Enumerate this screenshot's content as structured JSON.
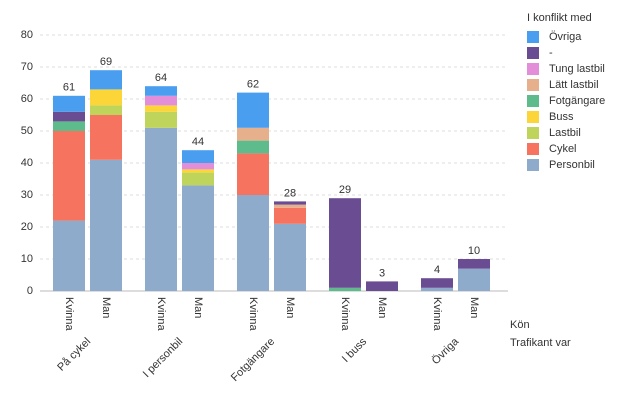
{
  "chart_data": {
    "type": "stacked-bar",
    "groups": [
      {
        "name": "På cykel",
        "categories": [
          "Kvinna",
          "Man"
        ]
      },
      {
        "name": "I personbil",
        "categories": [
          "Kvinna",
          "Man"
        ]
      },
      {
        "name": "Fotgängare",
        "categories": [
          "Kvinna",
          "Man"
        ]
      },
      {
        "name": "I buss",
        "categories": [
          "Kvinna",
          "Man"
        ]
      },
      {
        "name": "Övriga",
        "categories": [
          "Kvinna",
          "Man"
        ]
      }
    ],
    "x_label": "Kön",
    "group_label": "Trafikant var",
    "legend_title": "I konflikt med",
    "series": [
      {
        "name": "Personbil",
        "color": "#8fabcc",
        "values": [
          22,
          41,
          51,
          33,
          30,
          21,
          0,
          0,
          1,
          7
        ]
      },
      {
        "name": "Cykel",
        "color": "#f5735f",
        "values": [
          28,
          14,
          0,
          0,
          13,
          5,
          0,
          0,
          0,
          0
        ]
      },
      {
        "name": "Lastbil",
        "color": "#bfd45a",
        "values": [
          0,
          3,
          5,
          4,
          0,
          0,
          0,
          0,
          0,
          0
        ]
      },
      {
        "name": "Buss",
        "color": "#fcd638",
        "values": [
          0,
          5,
          2,
          1,
          0,
          0,
          0,
          0,
          0,
          0
        ]
      },
      {
        "name": "Fotgängare",
        "color": "#5dbb8c",
        "values": [
          3,
          0,
          0,
          0,
          4,
          0,
          1,
          0,
          0,
          0
        ]
      },
      {
        "name": "Lätt lastbil",
        "color": "#e6b08c",
        "values": [
          0,
          0,
          0,
          0,
          4,
          1,
          0,
          0,
          0,
          0
        ]
      },
      {
        "name": "Tung lastbil",
        "color": "#e38ed8",
        "values": [
          0,
          0,
          3,
          2,
          0,
          0,
          0,
          0,
          0,
          0
        ]
      },
      {
        "name": "-",
        "color": "#6a4c93",
        "values": [
          3,
          0,
          0,
          0,
          0,
          1,
          28,
          3,
          3,
          3
        ]
      },
      {
        "name": "Övriga",
        "color": "#4a9ef0",
        "values": [
          5,
          6,
          3,
          4,
          11,
          0,
          0,
          0,
          0,
          0
        ]
      }
    ],
    "totals": [
      61,
      69,
      64,
      44,
      62,
      28,
      29,
      3,
      4,
      10
    ],
    "ylim": [
      0,
      80
    ],
    "yticks": [
      0,
      10,
      20,
      30,
      40,
      50,
      60,
      70,
      80
    ],
    "grid": true
  }
}
